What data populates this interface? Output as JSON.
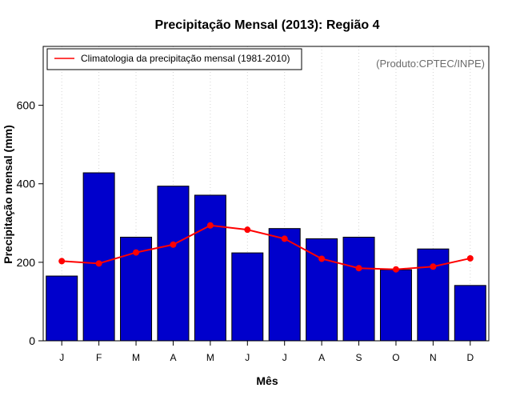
{
  "chart_data": {
    "type": "bar",
    "title": "Precipitação Mensal (2013): Região 4",
    "xlabel": "Mês",
    "ylabel": "Precipitação mensal (mm)",
    "categories": [
      "J",
      "F",
      "M",
      "A",
      "M",
      "J",
      "J",
      "A",
      "S",
      "O",
      "N",
      "D"
    ],
    "ylim": [
      0,
      750
    ],
    "yticks": [
      0,
      200,
      400,
      600
    ],
    "grid": "vertical dotted",
    "series": [
      {
        "name": "Precipitação mensal (2013)",
        "kind": "bar",
        "color": "#0000cc",
        "values": [
          165,
          428,
          264,
          394,
          371,
          224,
          286,
          260,
          264,
          181,
          234,
          141
        ]
      },
      {
        "name": "Climatologia da precipitação mensal (1981-2010)",
        "kind": "line",
        "color": "#ff0000",
        "values": [
          203,
          197,
          225,
          245,
          294,
          283,
          260,
          209,
          185,
          182,
          189,
          210
        ]
      }
    ],
    "legend": {
      "position": "top-left",
      "entries": [
        "Climatologia da precipitação mensal (1981-2010)"
      ]
    },
    "annotation": "(Produto:CPTEC/INPE)"
  }
}
